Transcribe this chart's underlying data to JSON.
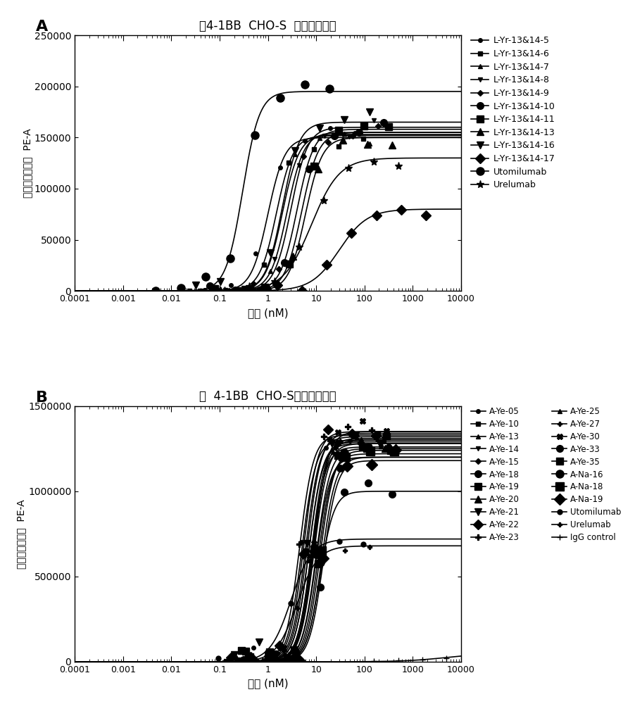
{
  "panel_A": {
    "title": "人4-1BB  CHO-S  细胞结合试验",
    "ylabel": "荧光强度中位数  PE-A",
    "xlabel": "浓度 (nM)",
    "ylim": [
      0,
      250000
    ],
    "yticks": [
      0,
      50000,
      100000,
      150000,
      200000,
      250000
    ],
    "xlim_min": 0.0001,
    "xlim_max": 10000,
    "series": [
      {
        "label": "L-Yr-13&14-5",
        "marker": "o",
        "ms": 5,
        "ec50": 1.0,
        "top": 150000,
        "hill": 2.5
      },
      {
        "label": "L-Yr-13&14-6",
        "marker": "s",
        "ms": 5,
        "ec50": 1.5,
        "top": 152000,
        "hill": 2.5
      },
      {
        "label": "L-Yr-13&14-7",
        "marker": "^",
        "ms": 5,
        "ec50": 2.0,
        "top": 153000,
        "hill": 2.5
      },
      {
        "label": "L-Yr-13&14-8",
        "marker": "v",
        "ms": 5,
        "ec50": 2.5,
        "top": 155000,
        "hill": 2.5
      },
      {
        "label": "L-Yr-13&14-9",
        "marker": "D",
        "ms": 4,
        "ec50": 3.0,
        "top": 160000,
        "hill": 2.5
      },
      {
        "label": "L-Yr-13&14-10",
        "marker": "o",
        "ms": 7,
        "ec50": 4.0,
        "top": 158000,
        "hill": 2.5
      },
      {
        "label": "L-Yr-13&14-11",
        "marker": "s",
        "ms": 7,
        "ec50": 5.0,
        "top": 155000,
        "hill": 2.5
      },
      {
        "label": "L-Yr-13&14-13",
        "marker": "^",
        "ms": 7,
        "ec50": 6.0,
        "top": 150000,
        "hill": 2.5
      },
      {
        "label": "L-Yr-13&14-16",
        "marker": "v",
        "ms": 7,
        "ec50": 2.0,
        "top": 165000,
        "hill": 2.5
      },
      {
        "label": "L-Yr-13&14-17",
        "marker": "D",
        "ms": 7,
        "ec50": 30.0,
        "top": 80000,
        "hill": 1.5
      },
      {
        "label": "Utomilumab",
        "marker": "o",
        "ms": 8,
        "ec50": 0.3,
        "top": 195000,
        "hill": 2.5
      },
      {
        "label": "Urelumab",
        "marker": "*",
        "ms": 8,
        "ec50": 8.0,
        "top": 130000,
        "hill": 1.5
      }
    ]
  },
  "panel_B": {
    "title": "人  4-1BB  CHO-S细胞结合试验",
    "ylabel": "荧光强度中位数  PE-A",
    "xlabel": "浓度 (nM)",
    "ylim": [
      0,
      1500000
    ],
    "yticks": [
      0,
      500000,
      1000000,
      1500000
    ],
    "xlim_min": 0.0001,
    "xlim_max": 10000,
    "series_left": [
      {
        "label": "A-Ye-05",
        "marker": "o",
        "ms": 5,
        "ec50": 5.0,
        "top": 1300000,
        "hill": 3.0
      },
      {
        "label": "A-Ye-10",
        "marker": "s",
        "ms": 5,
        "ec50": 6.0,
        "top": 1320000,
        "hill": 3.0
      },
      {
        "label": "A-Ye-13",
        "marker": "^",
        "ms": 5,
        "ec50": 7.0,
        "top": 1290000,
        "hill": 3.0
      },
      {
        "label": "A-Ye-14",
        "marker": "v",
        "ms": 5,
        "ec50": 8.0,
        "top": 1310000,
        "hill": 3.0
      },
      {
        "label": "A-Ye-15",
        "marker": "D",
        "ms": 4,
        "ec50": 10.0,
        "top": 1250000,
        "hill": 3.0
      },
      {
        "label": "A-Ye-18",
        "marker": "o",
        "ms": 7,
        "ec50": 12.0,
        "top": 1000000,
        "hill": 3.0
      },
      {
        "label": "A-Ye-19",
        "marker": "s",
        "ms": 7,
        "ec50": 9.0,
        "top": 1280000,
        "hill": 3.0
      },
      {
        "label": "A-Ye-20",
        "marker": "^",
        "ms": 7,
        "ec50": 8.5,
        "top": 1300000,
        "hill": 3.0
      },
      {
        "label": "A-Ye-21",
        "marker": "v",
        "ms": 7,
        "ec50": 6.5,
        "top": 1340000,
        "hill": 3.0
      },
      {
        "label": "A-Ye-22",
        "marker": "D",
        "ms": 7,
        "ec50": 5.5,
        "top": 1350000,
        "hill": 3.0
      },
      {
        "label": "A-Ye-23",
        "marker": "P",
        "ms": 6,
        "ec50": 4.5,
        "top": 1330000,
        "hill": 3.0
      }
    ],
    "series_right": [
      {
        "label": "A-Ye-25",
        "marker": "^",
        "ms": 5,
        "ec50": 7.0,
        "top": 1280000,
        "hill": 3.0
      },
      {
        "label": "A-Ye-27",
        "marker": "P",
        "ms": 5,
        "ec50": 8.0,
        "top": 1260000,
        "hill": 3.0
      },
      {
        "label": "A-Ye-30",
        "marker": "X",
        "ms": 6,
        "ec50": 9.0,
        "top": 1350000,
        "hill": 3.0
      },
      {
        "label": "A-Ye-33",
        "marker": "o",
        "ms": 7,
        "ec50": 10.0,
        "top": 1200000,
        "hill": 3.0
      },
      {
        "label": "A-Ye-35",
        "marker": "s",
        "ms": 7,
        "ec50": 11.0,
        "top": 1220000,
        "hill": 3.0
      },
      {
        "label": "A-Na-16",
        "marker": "o",
        "ms": 8,
        "ec50": 12.0,
        "top": 1240000,
        "hill": 3.0
      },
      {
        "label": "A-Na-18",
        "marker": "s",
        "ms": 8,
        "ec50": 13.0,
        "top": 1200000,
        "hill": 3.0
      },
      {
        "label": "A-Na-19",
        "marker": "D",
        "ms": 8,
        "ec50": 14.0,
        "top": 1180000,
        "hill": 3.0
      },
      {
        "label": "Utomilumab",
        "marker": "o",
        "ms": 5,
        "ec50": 3.0,
        "top": 720000,
        "hill": 2.0
      },
      {
        "label": "Urelumab",
        "marker": "P",
        "ms": 5,
        "ec50": 4.0,
        "top": 680000,
        "hill": 2.0
      },
      {
        "label": "IgG control",
        "marker": "+",
        "ms": 6,
        "ec50": 5000.0,
        "top": 50000,
        "hill": 1.0
      }
    ]
  }
}
